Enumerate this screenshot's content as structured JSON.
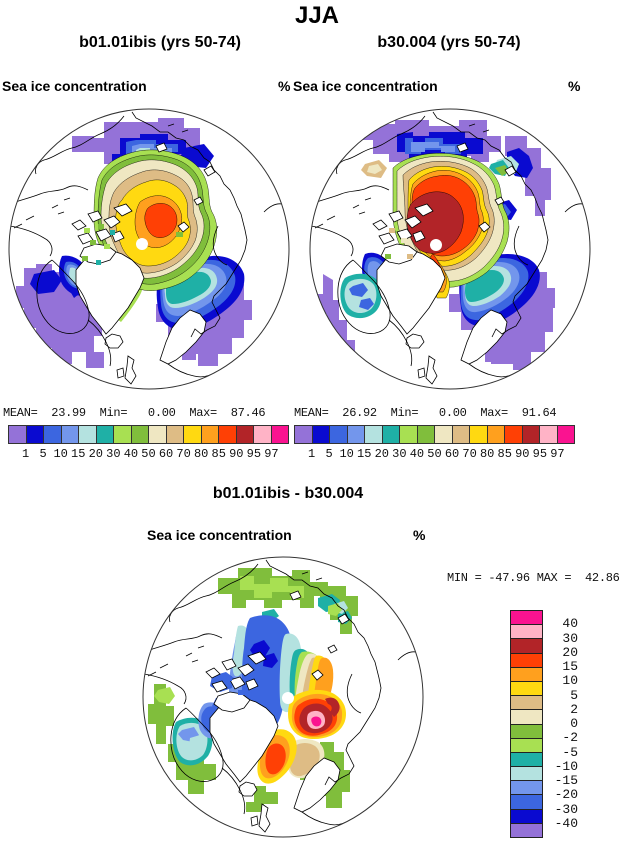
{
  "title": "JJA",
  "panels": {
    "left": {
      "title": "b01.01ibis (yrs 50-74)",
      "field_label": "Sea ice concentration",
      "unit": "%",
      "stats": "MEAN=  23.99  Min=   0.00  Max=  87.46"
    },
    "right": {
      "title": "b30.004 (yrs 50-74)",
      "field_label": "Sea ice concentration",
      "unit": "%",
      "stats": "MEAN=  26.92  Min=   0.00  Max=  91.64"
    },
    "diff": {
      "title": "b01.01ibis - b30.004",
      "field_label": "Sea ice concentration",
      "unit": "%",
      "minmax": "MIN = -47.96 MAX =  42.86"
    }
  },
  "colorbar": {
    "tick_labels": [
      "1",
      "5",
      "10",
      "15",
      "20",
      "30",
      "40",
      "50",
      "60",
      "70",
      "80",
      "85",
      "90",
      "95",
      "97"
    ]
  },
  "diff_colorbar": {
    "tick_labels": [
      "40",
      "30",
      "20",
      "15",
      "10",
      "5",
      "2",
      "0",
      "-2",
      "-5",
      "-10",
      "-15",
      "-20",
      "-30",
      "-40"
    ]
  },
  "palette": {
    "purple": "#9472d8",
    "darkblue": "#0a0ad0",
    "royal": "#3c66e0",
    "cornflower": "#7396ec",
    "palecyan": "#b4e2e0",
    "teal": "#1fb0a6",
    "lightgreen": "#a8e052",
    "green": "#80be3c",
    "cream": "#efe7c2",
    "tan": "#debc85",
    "yellow": "#ffd911",
    "orange": "#ffa01e",
    "orangered": "#ff4005",
    "darkred": "#b22428",
    "pink": "#ffb3c6",
    "magenta": "#fa1390"
  },
  "palette_order": [
    "purple",
    "darkblue",
    "royal",
    "cornflower",
    "palecyan",
    "teal",
    "lightgreen",
    "green",
    "cream",
    "tan",
    "yellow",
    "orange",
    "orangered",
    "darkred",
    "pink",
    "magenta"
  ],
  "chart_data": [
    {
      "type": "heatmap",
      "title": "b01.01ibis (yrs 50-74)",
      "season": "JJA",
      "variable": "Sea ice concentration",
      "units": "%",
      "projection": "north polar stereographic",
      "levels": [
        1,
        5,
        10,
        15,
        20,
        30,
        40,
        50,
        60,
        70,
        80,
        85,
        90,
        95,
        97
      ],
      "mean": 23.99,
      "min": 0.0,
      "max": 87.46
    },
    {
      "type": "heatmap",
      "title": "b30.004 (yrs 50-74)",
      "season": "JJA",
      "variable": "Sea ice concentration",
      "units": "%",
      "projection": "north polar stereographic",
      "levels": [
        1,
        5,
        10,
        15,
        20,
        30,
        40,
        50,
        60,
        70,
        80,
        85,
        90,
        95,
        97
      ],
      "mean": 26.92,
      "min": 0.0,
      "max": 91.64
    },
    {
      "type": "heatmap",
      "title": "b01.01ibis - b30.004",
      "season": "JJA",
      "variable": "Sea ice concentration difference",
      "units": "%",
      "projection": "north polar stereographic",
      "levels": [
        -40,
        -30,
        -20,
        -15,
        -10,
        -5,
        -2,
        0,
        2,
        5,
        10,
        15,
        20,
        30,
        40
      ],
      "min": -47.96,
      "max": 42.86
    }
  ]
}
